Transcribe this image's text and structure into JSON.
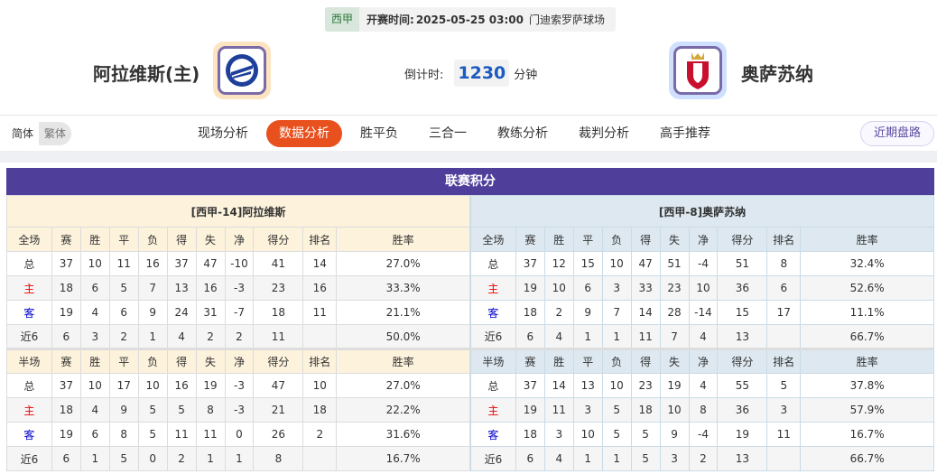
{
  "match": {
    "league": "西甲",
    "time_label": "开赛时间:",
    "time": "2025-05-25 03:00",
    "venue": "门迪索罗萨球场"
  },
  "home": {
    "name": "阿拉维斯(主)",
    "table_title": "[西甲-14]阿拉维斯"
  },
  "away": {
    "name": "奥萨苏纳",
    "table_title": "[西甲-8]奥萨苏纳"
  },
  "countdown": {
    "label": "倒计时:",
    "value": "1230",
    "unit": "分钟"
  },
  "lang": {
    "simplified": "简体",
    "traditional": "繁体"
  },
  "tabs": [
    "现场分析",
    "数据分析",
    "胜平负",
    "三合一",
    "教练分析",
    "裁判分析",
    "高手推荐"
  ],
  "active_tab": "数据分析",
  "recent_button": "近期盘路",
  "section_title": "联赛积分",
  "columns_full": [
    "全场",
    "赛",
    "胜",
    "平",
    "负",
    "得",
    "失",
    "净",
    "得分",
    "排名",
    "胜率"
  ],
  "columns_half": [
    "半场",
    "赛",
    "胜",
    "平",
    "负",
    "得",
    "失",
    "净",
    "得分",
    "排名",
    "胜率"
  ],
  "home_full": [
    [
      "总",
      "37",
      "10",
      "11",
      "16",
      "37",
      "47",
      "-10",
      "41",
      "14",
      "27.0%"
    ],
    [
      "主",
      "18",
      "6",
      "5",
      "7",
      "13",
      "16",
      "-3",
      "23",
      "16",
      "33.3%"
    ],
    [
      "客",
      "19",
      "4",
      "6",
      "9",
      "24",
      "31",
      "-7",
      "18",
      "11",
      "21.1%"
    ],
    [
      "近6",
      "6",
      "3",
      "2",
      "1",
      "4",
      "2",
      "2",
      "11",
      "",
      "50.0%"
    ]
  ],
  "home_half": [
    [
      "总",
      "37",
      "10",
      "17",
      "10",
      "16",
      "19",
      "-3",
      "47",
      "10",
      "27.0%"
    ],
    [
      "主",
      "18",
      "4",
      "9",
      "5",
      "5",
      "8",
      "-3",
      "21",
      "18",
      "22.2%"
    ],
    [
      "客",
      "19",
      "6",
      "8",
      "5",
      "11",
      "11",
      "0",
      "26",
      "2",
      "31.6%"
    ],
    [
      "近6",
      "6",
      "1",
      "5",
      "0",
      "2",
      "1",
      "1",
      "8",
      "",
      "16.7%"
    ]
  ],
  "away_full": [
    [
      "总",
      "37",
      "12",
      "15",
      "10",
      "47",
      "51",
      "-4",
      "51",
      "8",
      "32.4%"
    ],
    [
      "主",
      "19",
      "10",
      "6",
      "3",
      "33",
      "23",
      "10",
      "36",
      "6",
      "52.6%"
    ],
    [
      "客",
      "18",
      "2",
      "9",
      "7",
      "14",
      "28",
      "-14",
      "15",
      "17",
      "11.1%"
    ],
    [
      "近6",
      "6",
      "4",
      "1",
      "1",
      "11",
      "7",
      "4",
      "13",
      "",
      "66.7%"
    ]
  ],
  "away_half": [
    [
      "总",
      "37",
      "14",
      "13",
      "10",
      "23",
      "19",
      "4",
      "55",
      "5",
      "37.8%"
    ],
    [
      "主",
      "19",
      "11",
      "3",
      "5",
      "18",
      "10",
      "8",
      "36",
      "3",
      "57.9%"
    ],
    [
      "客",
      "18",
      "3",
      "10",
      "5",
      "5",
      "9",
      "-4",
      "19",
      "11",
      "16.7%"
    ],
    [
      "近6",
      "6",
      "4",
      "1",
      "1",
      "5",
      "3",
      "2",
      "13",
      "",
      "66.7%"
    ]
  ],
  "colors": {
    "title_bar": "#4f3f9b",
    "active_tab": "#e8501e",
    "home_label": "#ee0000",
    "away_label": "#0000cc"
  }
}
